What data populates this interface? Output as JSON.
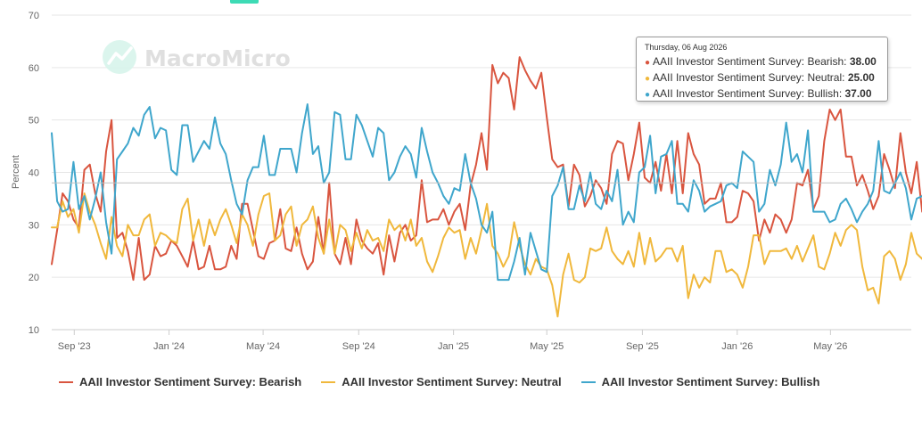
{
  "watermark": "MacroMicro",
  "colors": {
    "bearish": "#d9553f",
    "neutral": "#f0b83c",
    "bullish": "#3fa6cc",
    "grid": "#e6e6e6",
    "crosshair": "#c0c0c0",
    "brand": "#3ddbb5"
  },
  "tooltip": {
    "date": "Thursday, 06 Aug 2026",
    "rows": [
      {
        "name": "AAII Investor Sentiment Survey: Bearish",
        "value": "38.00",
        "color": "#d9553f"
      },
      {
        "name": "AAII Investor Sentiment Survey: Neutral",
        "value": "25.00",
        "color": "#f0b83c"
      },
      {
        "name": "AAII Investor Sentiment Survey: Bullish",
        "value": "37.00",
        "color": "#3fa6cc"
      }
    ]
  },
  "chart_data": {
    "type": "line",
    "ylabel": "Percent",
    "ylim": [
      10,
      70
    ],
    "yticks": [
      10,
      20,
      30,
      40,
      50,
      60,
      70
    ],
    "xlim": [
      "2023-08-03",
      "2026-08-13"
    ],
    "xticks": [
      {
        "date": "2023-09-01",
        "label": "Sep '23"
      },
      {
        "date": "2024-01-01",
        "label": "Jan '24"
      },
      {
        "date": "2024-05-01",
        "label": "May '24"
      },
      {
        "date": "2024-09-01",
        "label": "Sep '24"
      },
      {
        "date": "2025-01-01",
        "label": "Jan '25"
      },
      {
        "date": "2025-05-01",
        "label": "May '25"
      },
      {
        "date": "2025-09-01",
        "label": "Sep '25"
      },
      {
        "date": "2026-01-01",
        "label": "Jan '26"
      },
      {
        "date": "2026-05-01",
        "label": "May '26"
      }
    ],
    "grid": "horizontal",
    "legend_position": "bottom",
    "x_start": "2023-08-03",
    "x_step_days": 7,
    "series": [
      {
        "name": "AAII Investor Sentiment Survey: Bearish",
        "color": "#d9553f",
        "values": [
          22.5,
          29,
          36,
          34.5,
          31,
          29.5,
          40.5,
          41.5,
          36,
          32.5,
          44,
          50,
          27.5,
          28.5,
          25,
          19.5,
          27.5,
          19.5,
          20.5,
          26,
          24,
          24.5,
          27,
          26,
          24,
          22,
          27,
          21.5,
          22,
          26,
          21.5,
          21.5,
          22,
          26,
          23.5,
          34,
          34,
          29,
          24,
          23.5,
          26.5,
          27,
          33,
          25.5,
          25,
          29.5,
          24.5,
          21.5,
          23,
          31.5,
          24.5,
          38,
          24.5,
          22.5,
          27.5,
          22.5,
          31,
          27,
          25.5,
          24.5,
          26.5,
          20.5,
          28,
          23,
          28.5,
          30,
          27,
          28,
          38.5,
          30.5,
          31,
          31,
          33,
          30,
          32.5,
          34,
          29,
          37.5,
          41.5,
          47.5,
          40.5,
          60.5,
          57,
          59,
          58,
          52,
          62,
          59.5,
          57.5,
          56,
          59,
          50.5,
          42.5,
          41,
          41.5,
          33.5,
          41.5,
          39.5,
          33.5,
          35.5,
          38.5,
          37,
          34,
          43.5,
          46,
          45.5,
          38.5,
          43.5,
          49.5,
          39,
          38,
          42,
          36.5,
          43.5,
          36,
          46,
          36,
          47.5,
          43.5,
          41.5,
          34,
          35,
          35,
          38,
          30.5,
          30.5,
          31.5,
          36.5,
          36,
          34.5,
          27,
          31,
          28.5,
          32,
          31,
          28.5,
          31,
          38,
          37.5,
          40.5,
          33,
          35.5,
          46,
          52,
          50,
          52,
          43,
          43,
          37.5,
          39.5,
          36.5,
          33,
          35.5,
          43.5,
          40.5,
          37,
          47.5,
          40,
          36,
          42,
          32.5,
          34,
          40,
          34.5,
          33,
          42.5,
          42,
          38
        ]
      },
      {
        "name": "AAII Investor Sentiment Survey: Neutral",
        "color": "#f0b83c",
        "values": [
          29.5,
          29.5,
          34.5,
          31.5,
          33,
          28.5,
          36,
          32.5,
          30,
          26.5,
          23.5,
          31.5,
          26,
          24,
          30,
          28,
          28,
          31,
          32,
          26,
          28.5,
          28,
          27,
          26.5,
          33,
          35,
          27,
          31,
          26,
          31,
          28,
          31,
          33,
          30,
          26.5,
          32,
          30,
          26,
          32,
          35.5,
          36,
          27,
          28,
          32,
          33.5,
          26,
          30,
          31,
          33.5,
          27.5,
          24.5,
          31,
          24.5,
          30,
          29,
          25,
          28.5,
          25.5,
          29,
          27,
          27.5,
          25,
          31,
          29,
          30,
          27,
          31,
          26,
          27.5,
          23,
          21,
          24,
          27.5,
          29.5,
          28.5,
          29,
          23.5,
          27.5,
          24.5,
          29,
          34,
          26,
          24.5,
          22,
          24,
          30.5,
          26,
          22.5,
          20.5,
          23.5,
          22,
          21.5,
          18.5,
          12.5,
          20.5,
          24.5,
          19.5,
          19,
          20,
          25.5,
          25,
          25.5,
          29.5,
          25,
          23.5,
          22.5,
          25,
          22,
          28.5,
          22.5,
          27.5,
          23,
          24,
          25.5,
          25.5,
          23,
          26,
          16,
          20.5,
          18,
          20,
          19,
          25,
          25,
          21,
          21.5,
          20.5,
          18,
          22,
          28,
          28,
          22.5,
          25,
          25,
          25,
          25.5,
          23.5,
          26,
          23,
          25.5,
          28,
          22,
          21.5,
          24.5,
          28.5,
          26,
          29,
          30,
          29,
          22,
          17.5,
          18,
          15,
          24,
          25,
          23.5,
          19.5,
          22.5,
          28.5,
          24.5,
          23.5,
          26.5,
          23.5,
          22.5,
          22.5,
          27,
          19,
          27,
          26.5,
          22,
          26.5,
          28,
          26.5,
          25
        ]
      },
      {
        "name": "AAII Investor Sentiment Survey: Bullish",
        "color": "#3fa6cc",
        "values": [
          47.5,
          34.5,
          32.5,
          33,
          42,
          33,
          35.5,
          31,
          35,
          40,
          30.5,
          24.5,
          42.5,
          44,
          45.5,
          48.5,
          47,
          51,
          52.5,
          46.5,
          48.5,
          48,
          40.5,
          39.5,
          49,
          49,
          42,
          44,
          46,
          44.5,
          50.5,
          45.5,
          43.5,
          38.5,
          34,
          32,
          38.5,
          41,
          41,
          47,
          39.5,
          39.5,
          44.5,
          44.5,
          44.5,
          40,
          47.5,
          53,
          43.5,
          45,
          38,
          40,
          51.5,
          51,
          42.5,
          42.5,
          51,
          49,
          46,
          43,
          48.5,
          47.5,
          38.5,
          40,
          43,
          45,
          43.5,
          39,
          48.5,
          44,
          40,
          38,
          35.5,
          34,
          37,
          36.5,
          43.5,
          38,
          35,
          30,
          28.5,
          32.5,
          19.5,
          19.5,
          19.5,
          23,
          27.5,
          20.5,
          28.5,
          25,
          21.5,
          21,
          35.5,
          37.5,
          41,
          33,
          33,
          37.5,
          34.5,
          40,
          34,
          33,
          36.5,
          34.5,
          40.5,
          30,
          32.5,
          30.5,
          40,
          41,
          47,
          36,
          43,
          43.5,
          46,
          34,
          34,
          32.5,
          38.5,
          36.5,
          32.5,
          33.5,
          34,
          34.5,
          37.5,
          38,
          37,
          44,
          43,
          42,
          32.5,
          34,
          40.5,
          37.5,
          41.5,
          49.5,
          42,
          43.5,
          40,
          48,
          32.5,
          32.5,
          32.5,
          30.5,
          31,
          34,
          35,
          33,
          30.5,
          32.5,
          34,
          36.5,
          46,
          36.5,
          36,
          38,
          40,
          37,
          31,
          35,
          35.5,
          37,
          33,
          39,
          45.5,
          33,
          32.5,
          44.5,
          29.5,
          31,
          37
        ]
      }
    ]
  },
  "legend": {
    "bearish": "AAII Investor Sentiment Survey: Bearish",
    "neutral": "AAII Investor Sentiment Survey: Neutral",
    "bullish": "AAII Investor Sentiment Survey: Bullish"
  }
}
